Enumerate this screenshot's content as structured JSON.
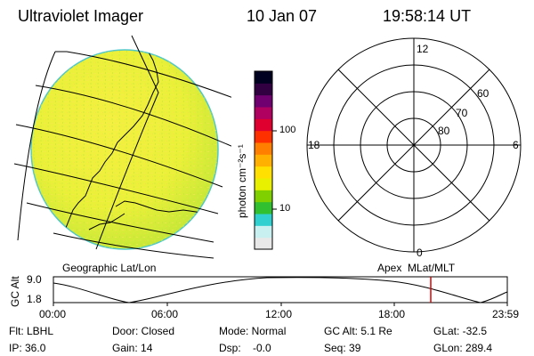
{
  "header": {
    "instrument": "Ultraviolet Imager",
    "date": "10 Jan 07",
    "time": "19:58:14 UT"
  },
  "map_left": {
    "label": "Geographic Lat/Lon"
  },
  "map_right": {
    "label": "Apex  MLat/MLT",
    "mlt_labels": {
      "top": "12",
      "left": "18",
      "right": "6",
      "bottom": "0"
    },
    "lat_labels": [
      "60",
      "70",
      "80"
    ]
  },
  "colorbar": {
    "unit_label": "photon cm⁻²s⁻¹",
    "ticks": [
      "100",
      "10"
    ],
    "colors": [
      "#e8e8e8",
      "#c8f0f0",
      "#30d0d0",
      "#30c030",
      "#80d000",
      "#e8f000",
      "#ffe000",
      "#ffb000",
      "#ff8000",
      "#ff3000",
      "#e00030",
      "#b00060",
      "#700070",
      "#300040",
      "#000020"
    ]
  },
  "altitude_plot": {
    "ylabel": "GC Alt",
    "y_ticks": [
      "9.0",
      "1.8"
    ],
    "x_ticks": [
      "00:00",
      "06:00",
      "12:00",
      "18:00",
      "23:59"
    ],
    "current_time_color": "#e00000"
  },
  "footer": {
    "flt": "Flt: LBHL",
    "ip": "IP: 36.0",
    "door": "Door: Closed",
    "gain": "Gain: 14",
    "mode": "Mode: Normal",
    "dsp": "Dsp:    -0.0",
    "gc_alt": "GC Alt: 5.1 Re",
    "seq": "Seq: 39",
    "glat": "GLat: -32.5",
    "glon": "GLon: 289.4"
  }
}
